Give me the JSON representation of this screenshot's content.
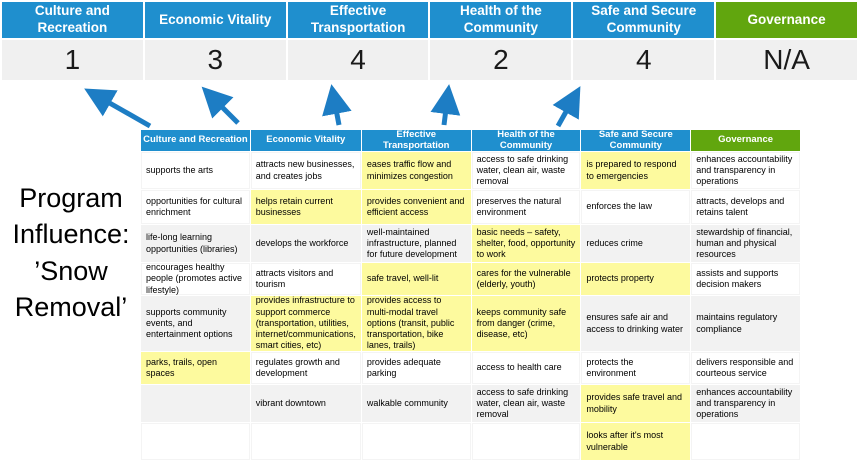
{
  "colors": {
    "header_blue": "#1F8FCE",
    "header_green": "#61A60E",
    "highlight_yellow": "#FDFA9E",
    "row_gray": "#F2F2F2",
    "score_row_bg": "#F0F0F0",
    "arrow_blue": "#1D7DC4"
  },
  "program_title": {
    "text": "Program\nInfluence:\n’Snow\nRemoval’"
  },
  "score_table": {
    "columns": [
      {
        "label": "Culture and Recreation",
        "score": "1",
        "theme": "blue"
      },
      {
        "label": "Economic Vitality",
        "score": "3",
        "theme": "blue"
      },
      {
        "label": "Effective Transportation",
        "score": "4",
        "theme": "blue"
      },
      {
        "label": "Health of the Community",
        "score": "2",
        "theme": "blue"
      },
      {
        "label": "Safe and Secure Community",
        "score": "4",
        "theme": "blue"
      },
      {
        "label": "Governance",
        "score": "N/A",
        "theme": "green"
      }
    ]
  },
  "matrix": {
    "headers": [
      {
        "label": "Culture and Recreation",
        "theme": "blue"
      },
      {
        "label": "Economic Vitality",
        "theme": "blue"
      },
      {
        "label": "Effective Transportation",
        "theme": "blue"
      },
      {
        "label": "Health of the Community",
        "theme": "blue"
      },
      {
        "label": "Safe and Secure Community",
        "theme": "blue"
      },
      {
        "label": "Governance",
        "theme": "green"
      }
    ],
    "rows": [
      {
        "shaded": false,
        "cells": [
          {
            "text": "supports the arts",
            "highlight": false
          },
          {
            "text": "attracts new businesses, and creates jobs",
            "highlight": false
          },
          {
            "text": "eases traffic flow and minimizes congestion",
            "highlight": true
          },
          {
            "text": "access to safe drinking water, clean air, waste removal",
            "highlight": false
          },
          {
            "text": "is prepared to respond to emergencies",
            "highlight": true
          },
          {
            "text": "enhances accountability and transparency in operations",
            "highlight": false
          }
        ]
      },
      {
        "shaded": false,
        "cells": [
          {
            "text": "opportunities for cultural enrichment",
            "highlight": false
          },
          {
            "text": "helps retain current businesses",
            "highlight": true
          },
          {
            "text": "provides convenient and efficient access",
            "highlight": true
          },
          {
            "text": "preserves the natural environment",
            "highlight": false
          },
          {
            "text": "enforces the law",
            "highlight": false
          },
          {
            "text": "attracts, develops and retains talent",
            "highlight": false
          }
        ]
      },
      {
        "shaded": true,
        "cells": [
          {
            "text": "life-long learning opportunities (libraries)",
            "highlight": false
          },
          {
            "text": "develops the workforce",
            "highlight": false
          },
          {
            "text": "well-maintained infrastructure, planned for future development",
            "highlight": false
          },
          {
            "text": "basic needs – safety, shelter, food, opportunity to work",
            "highlight": true
          },
          {
            "text": "reduces crime",
            "highlight": false
          },
          {
            "text": "stewardship of financial, human and physical resources",
            "highlight": false
          }
        ]
      },
      {
        "shaded": false,
        "cells": [
          {
            "text": "encourages healthy people (promotes active lifestyle)",
            "highlight": false
          },
          {
            "text": "attracts visitors and tourism",
            "highlight": false
          },
          {
            "text": "safe travel, well-lit",
            "highlight": true
          },
          {
            "text": "cares for the vulnerable (elderly, youth)",
            "highlight": true
          },
          {
            "text": "protects property",
            "highlight": true
          },
          {
            "text": "assists and supports decision makers",
            "highlight": false
          }
        ]
      },
      {
        "shaded": true,
        "cells": [
          {
            "text": "supports community events, and entertainment options",
            "highlight": false
          },
          {
            "text": "provides infrastructure to support commerce (transportation, utilities, internet/communications, smart cities, etc)",
            "highlight": true
          },
          {
            "text": "provides access to multi-modal travel options (transit, public transportation, bike lanes, trails)",
            "highlight": true
          },
          {
            "text": "keeps community safe from danger (crime, disease, etc)",
            "highlight": true
          },
          {
            "text": "ensures safe air and access to drinking water",
            "highlight": false
          },
          {
            "text": "maintains regulatory compliance",
            "highlight": false
          }
        ]
      },
      {
        "shaded": false,
        "cells": [
          {
            "text": "parks, trails, open spaces",
            "highlight": true
          },
          {
            "text": "regulates growth and development",
            "highlight": false
          },
          {
            "text": "provides adequate parking",
            "highlight": false
          },
          {
            "text": "access to health care",
            "highlight": false
          },
          {
            "text": "protects the environment",
            "highlight": false
          },
          {
            "text": "delivers responsible and courteous service",
            "highlight": false
          }
        ]
      },
      {
        "shaded": true,
        "cells": [
          {
            "text": "",
            "highlight": false
          },
          {
            "text": "vibrant downtown",
            "highlight": false
          },
          {
            "text": "walkable community",
            "highlight": false
          },
          {
            "text": "access to safe drinking water, clean air, waste removal",
            "highlight": false
          },
          {
            "text": "provides safe travel and mobility",
            "highlight": true
          },
          {
            "text": "enhances accountability and transparency in operations",
            "highlight": false
          }
        ]
      },
      {
        "shaded": false,
        "cells": [
          {
            "text": "",
            "highlight": false
          },
          {
            "text": "",
            "highlight": false
          },
          {
            "text": "",
            "highlight": false
          },
          {
            "text": "",
            "highlight": false
          },
          {
            "text": "looks after it's most vulnerable",
            "highlight": true
          },
          {
            "text": "",
            "highlight": false
          }
        ]
      }
    ]
  }
}
